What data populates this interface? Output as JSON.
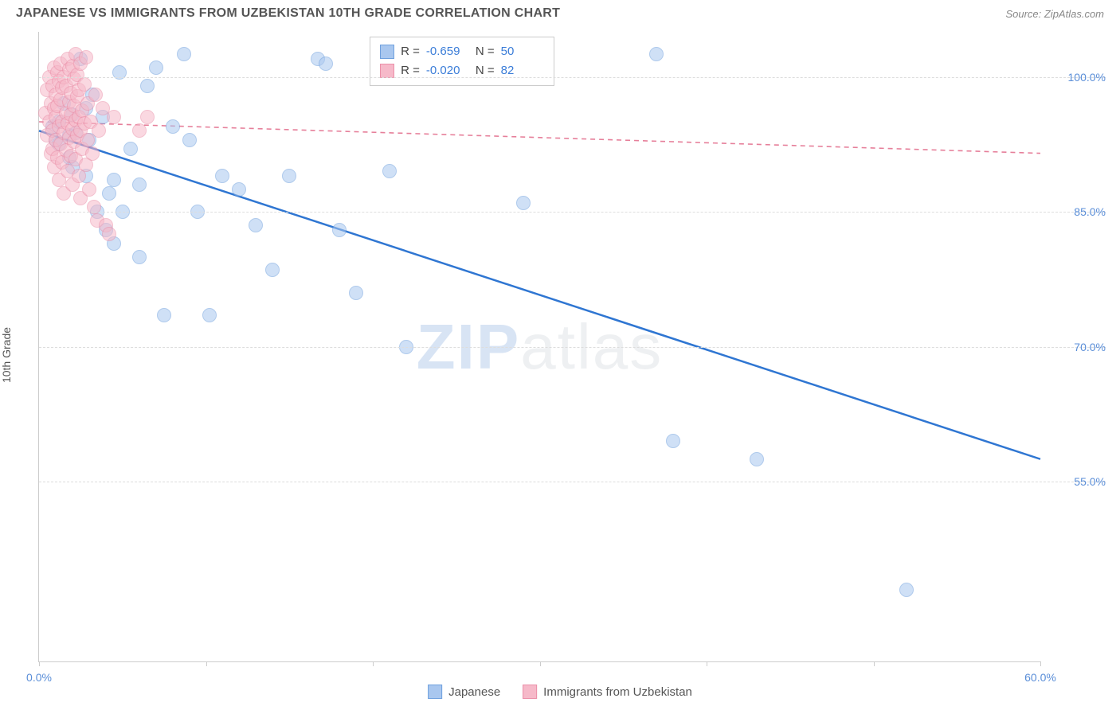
{
  "title": "JAPANESE VS IMMIGRANTS FROM UZBEKISTAN 10TH GRADE CORRELATION CHART",
  "source": "Source: ZipAtlas.com",
  "ylabel": "10th Grade",
  "watermark": {
    "part1": "ZIP",
    "part2": "atlas"
  },
  "chart": {
    "type": "scatter",
    "background_color": "#ffffff",
    "grid_color": "#dddddd",
    "axis_color": "#cccccc",
    "tick_label_color": "#5a8ed8",
    "xlim": [
      0,
      60
    ],
    "ylim": [
      35,
      105
    ],
    "yticks": [
      {
        "value": 55.0,
        "label": "55.0%"
      },
      {
        "value": 70.0,
        "label": "70.0%"
      },
      {
        "value": 85.0,
        "label": "85.0%"
      },
      {
        "value": 100.0,
        "label": "100.0%"
      }
    ],
    "xticks_minor": [
      0,
      10,
      20,
      30,
      40,
      50,
      60
    ],
    "xtick_labels": [
      {
        "value": 0,
        "label": "0.0%"
      },
      {
        "value": 60,
        "label": "60.0%"
      }
    ],
    "marker_radius": 9,
    "marker_opacity": 0.55,
    "series": [
      {
        "name": "Japanese",
        "fill": "#a9c7ef",
        "stroke": "#6fa0de",
        "trend": {
          "x1": 0,
          "y1": 94.0,
          "x2": 60,
          "y2": 57.5,
          "color": "#2f76d2",
          "width": 2.5,
          "dash": "none"
        },
        "stats": {
          "R": "-0.659",
          "N": "50"
        },
        "points": [
          [
            0.8,
            94.5
          ],
          [
            1.0,
            93.0
          ],
          [
            1.2,
            95.0
          ],
          [
            1.2,
            92.5
          ],
          [
            1.5,
            97.0
          ],
          [
            1.8,
            93.5
          ],
          [
            1.8,
            91.0
          ],
          [
            2.0,
            95.8
          ],
          [
            2.0,
            90.0
          ],
          [
            2.2,
            93.8
          ],
          [
            2.5,
            102.0
          ],
          [
            2.8,
            96.5
          ],
          [
            2.8,
            89.0
          ],
          [
            3.0,
            93.0
          ],
          [
            3.2,
            98.0
          ],
          [
            3.5,
            85.0
          ],
          [
            3.8,
            95.5
          ],
          [
            4.0,
            83.0
          ],
          [
            4.2,
            87.0
          ],
          [
            4.5,
            88.5
          ],
          [
            4.5,
            81.5
          ],
          [
            4.8,
            100.5
          ],
          [
            5.0,
            85.0
          ],
          [
            5.5,
            92.0
          ],
          [
            6.0,
            80.0
          ],
          [
            6.0,
            88.0
          ],
          [
            6.5,
            99.0
          ],
          [
            7.0,
            101.0
          ],
          [
            7.5,
            73.5
          ],
          [
            8.0,
            94.5
          ],
          [
            8.7,
            102.5
          ],
          [
            9.0,
            93.0
          ],
          [
            9.5,
            85.0
          ],
          [
            10.2,
            73.5
          ],
          [
            11.0,
            89.0
          ],
          [
            12.0,
            87.5
          ],
          [
            13.0,
            83.5
          ],
          [
            14.0,
            78.5
          ],
          [
            15.0,
            89.0
          ],
          [
            16.7,
            102.0
          ],
          [
            17.2,
            101.5
          ],
          [
            18.0,
            83.0
          ],
          [
            19.0,
            76.0
          ],
          [
            21.0,
            89.5
          ],
          [
            22.0,
            70.0
          ],
          [
            29.0,
            86.0
          ],
          [
            37.0,
            102.5
          ],
          [
            38.0,
            59.5
          ],
          [
            43.0,
            57.5
          ],
          [
            52.0,
            43.0
          ]
        ]
      },
      {
        "name": "Immigrants from Uzbekistan",
        "fill": "#f6b9c9",
        "stroke": "#eb8fa8",
        "trend": {
          "x1": 0,
          "y1": 95.0,
          "x2": 60,
          "y2": 91.5,
          "color": "#e67f9a",
          "width": 1.6,
          "dash": "6,5"
        },
        "stats": {
          "R": "-0.020",
          "N": "82"
        },
        "points": [
          [
            0.4,
            96.0
          ],
          [
            0.5,
            93.5
          ],
          [
            0.5,
            98.5
          ],
          [
            0.6,
            95.0
          ],
          [
            0.6,
            100.0
          ],
          [
            0.7,
            91.5
          ],
          [
            0.7,
            97.0
          ],
          [
            0.8,
            94.0
          ],
          [
            0.8,
            99.0
          ],
          [
            0.8,
            92.0
          ],
          [
            0.9,
            96.5
          ],
          [
            0.9,
            101.0
          ],
          [
            0.9,
            90.0
          ],
          [
            1.0,
            95.5
          ],
          [
            1.0,
            98.0
          ],
          [
            1.0,
            93.0
          ],
          [
            1.1,
            100.5
          ],
          [
            1.1,
            91.0
          ],
          [
            1.1,
            96.8
          ],
          [
            1.2,
            94.5
          ],
          [
            1.2,
            99.5
          ],
          [
            1.2,
            88.5
          ],
          [
            1.3,
            97.5
          ],
          [
            1.3,
            92.5
          ],
          [
            1.3,
            101.5
          ],
          [
            1.4,
            95.0
          ],
          [
            1.4,
            90.5
          ],
          [
            1.4,
            98.8
          ],
          [
            1.5,
            93.8
          ],
          [
            1.5,
            100.0
          ],
          [
            1.5,
            87.0
          ],
          [
            1.6,
            96.0
          ],
          [
            1.6,
            91.8
          ],
          [
            1.6,
            99.0
          ],
          [
            1.7,
            94.8
          ],
          [
            1.7,
            102.0
          ],
          [
            1.7,
            89.5
          ],
          [
            1.8,
            97.2
          ],
          [
            1.8,
            93.2
          ],
          [
            1.8,
            100.8
          ],
          [
            1.9,
            95.8
          ],
          [
            1.9,
            91.2
          ],
          [
            1.9,
            98.2
          ],
          [
            2.0,
            94.2
          ],
          [
            2.0,
            101.2
          ],
          [
            2.0,
            88.0
          ],
          [
            2.1,
            96.8
          ],
          [
            2.1,
            92.8
          ],
          [
            2.1,
            99.8
          ],
          [
            2.2,
            95.2
          ],
          [
            2.2,
            90.8
          ],
          [
            2.2,
            102.5
          ],
          [
            2.3,
            97.8
          ],
          [
            2.3,
            93.5
          ],
          [
            2.3,
            100.2
          ],
          [
            2.4,
            95.5
          ],
          [
            2.4,
            89.0
          ],
          [
            2.4,
            98.5
          ],
          [
            2.5,
            94.0
          ],
          [
            2.5,
            101.5
          ],
          [
            2.5,
            86.5
          ],
          [
            2.6,
            96.2
          ],
          [
            2.6,
            92.0
          ],
          [
            2.7,
            99.2
          ],
          [
            2.7,
            94.8
          ],
          [
            2.8,
            90.2
          ],
          [
            2.8,
            102.2
          ],
          [
            2.9,
            97.0
          ],
          [
            2.9,
            93.0
          ],
          [
            3.0,
            87.5
          ],
          [
            3.1,
            95.0
          ],
          [
            3.2,
            91.5
          ],
          [
            3.3,
            85.5
          ],
          [
            3.4,
            98.0
          ],
          [
            3.5,
            84.0
          ],
          [
            3.6,
            94.0
          ],
          [
            3.8,
            96.5
          ],
          [
            4.0,
            83.5
          ],
          [
            4.2,
            82.5
          ],
          [
            4.5,
            95.5
          ],
          [
            6.0,
            94.0
          ],
          [
            6.5,
            95.5
          ]
        ]
      }
    ]
  },
  "legend_top": {
    "R_label": "R =",
    "N_label": "N ="
  },
  "legend_bottom": {
    "items": [
      {
        "label": "Japanese",
        "fill": "#a9c7ef",
        "stroke": "#6fa0de"
      },
      {
        "label": "Immigrants from Uzbekistan",
        "fill": "#f6b9c9",
        "stroke": "#eb8fa8"
      }
    ]
  }
}
